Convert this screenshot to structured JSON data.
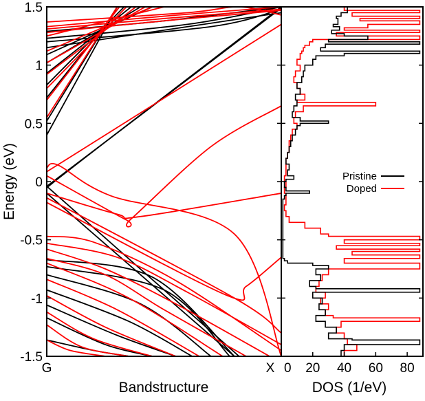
{
  "colors": {
    "pristine": "#000000",
    "doped": "#ff0000",
    "axes": "#000000",
    "background": "#ffffff"
  },
  "chart_data": [
    {
      "type": "line",
      "panel": "left",
      "title": "",
      "xlabel": "Bandstructure",
      "ylabel": "Energy (eV)",
      "x_tick_labels": [
        "G",
        "X"
      ],
      "ylim": [
        -1.5,
        1.5
      ],
      "y_ticks": [
        -1.5,
        -1,
        -0.5,
        0,
        0.5,
        1,
        1.5
      ],
      "y_tick_labels": [
        "-1.5",
        "-1",
        "-0.5",
        "0",
        "0.5",
        "1",
        "1.5"
      ],
      "grid": false,
      "series": [
        {
          "name": "Pristine",
          "color": "#000000",
          "bands": [
            {
              "k": [
                0.0,
                0.5,
                1.0
              ],
              "E": [
                1.29,
                1.38,
                1.5
              ]
            },
            {
              "k": [
                0.0,
                0.6,
                1.0
              ],
              "E": [
                1.23,
                1.35,
                1.5
              ]
            },
            {
              "k": [
                0.0,
                0.7,
                1.0
              ],
              "E": [
                1.2,
                1.33,
                1.48
              ]
            },
            {
              "k": [
                0.0,
                0.5,
                1.0
              ],
              "E": [
                1.15,
                1.3,
                1.45
              ]
            },
            {
              "k": [
                0.0,
                0.45
              ],
              "E": [
                1.09,
                1.5
              ]
            },
            {
              "k": [
                0.0,
                0.4
              ],
              "E": [
                1.02,
                1.5
              ]
            },
            {
              "k": [
                0.0,
                0.36
              ],
              "E": [
                0.93,
                1.5
              ]
            },
            {
              "k": [
                0.0,
                0.33
              ],
              "E": [
                0.83,
                1.5
              ]
            },
            {
              "k": [
                0.0,
                0.31
              ],
              "E": [
                0.72,
                1.5
              ]
            },
            {
              "k": [
                0.0,
                0.3
              ],
              "E": [
                0.52,
                1.5
              ]
            },
            {
              "k": [
                0.0,
                0.3
              ],
              "E": [
                0.4,
                1.5
              ]
            },
            {
              "k": [
                0.0,
                0.02,
                1.0
              ],
              "E": [
                -0.01,
                -0.01,
                1.49
              ]
            },
            {
              "k": [
                0.0,
                0.02,
                1.0
              ],
              "E": [
                -0.11,
                -0.02,
                1.5
              ]
            },
            {
              "k": [
                0.0,
                0.8
              ],
              "E": [
                -0.1,
                -1.5
              ]
            },
            {
              "k": [
                0.0,
                0.82
              ],
              "E": [
                -0.04,
                -1.5
              ]
            },
            {
              "k": [
                0.0,
                0.45,
                0.8
              ],
              "E": [
                -0.67,
                -0.82,
                -1.5
              ]
            },
            {
              "k": [
                0.0,
                0.5,
                0.78
              ],
              "E": [
                -0.73,
                -0.93,
                -1.5
              ]
            },
            {
              "k": [
                0.0,
                0.4,
                0.7
              ],
              "E": [
                -0.8,
                -1.05,
                -1.5
              ]
            },
            {
              "k": [
                0.0,
                0.35,
                0.62
              ],
              "E": [
                -0.93,
                -1.2,
                -1.5
              ]
            },
            {
              "k": [
                0.0,
                0.3,
                0.55
              ],
              "E": [
                -1.06,
                -1.32,
                -1.5
              ]
            },
            {
              "k": [
                0.0,
                0.25,
                0.45
              ],
              "E": [
                -1.17,
                -1.4,
                -1.5
              ]
            },
            {
              "k": [
                0.0,
                0.2,
                0.35
              ],
              "E": [
                -1.36,
                -1.45,
                -1.5
              ]
            }
          ]
        },
        {
          "name": "Doped",
          "color": "#ff0000",
          "bands": [
            {
              "k": [
                0.0,
                0.6,
                0.82,
                1.0
              ],
              "E": [
                1.37,
                1.45,
                1.5,
                1.43
              ]
            },
            {
              "k": [
                0.0,
                0.5,
                1.0
              ],
              "E": [
                1.33,
                1.42,
                1.5
              ]
            },
            {
              "k": [
                0.0,
                0.5,
                1.0
              ],
              "E": [
                1.31,
                1.4,
                1.48
              ]
            },
            {
              "k": [
                0.0,
                0.5,
                1.0
              ],
              "E": [
                1.28,
                1.38,
                1.47
              ]
            },
            {
              "k": [
                0.0,
                0.5
              ],
              "E": [
                1.25,
                1.5
              ]
            },
            {
              "k": [
                0.0,
                0.45
              ],
              "E": [
                1.12,
                1.5
              ]
            },
            {
              "k": [
                0.0,
                0.42
              ],
              "E": [
                1.02,
                1.5
              ]
            },
            {
              "k": [
                0.0,
                0.38
              ],
              "E": [
                0.92,
                1.5
              ]
            },
            {
              "k": [
                0.0,
                0.34
              ],
              "E": [
                0.8,
                1.5
              ]
            },
            {
              "k": [
                0.0,
                0.31
              ],
              "E": [
                0.7,
                1.5
              ]
            },
            {
              "k": [
                0.0,
                0.3
              ],
              "E": [
                0.55,
                1.5
              ]
            },
            {
              "k": [
                0.0,
                0.06,
                1.0
              ],
              "E": [
                0.09,
                0.16,
                1.35
              ]
            },
            {
              "k": [
                0.0,
                0.05,
                0.27,
                0.8,
                1.0
              ],
              "E": [
                0.12,
                0.14,
                -0.12,
                -0.45,
                -1.5
              ]
            },
            {
              "k": [
                0.0,
                0.34,
                0.36,
                0.7,
                1.0
              ],
              "E": [
                0.05,
                -0.33,
                -0.32,
                0.3,
                0.65
              ]
            },
            {
              "k": [
                0.0,
                0.3,
                0.4,
                1.0
              ],
              "E": [
                -0.1,
                -0.28,
                -0.3,
                -0.1
              ]
            },
            {
              "k": [
                0.0,
                0.76,
                0.85,
                1.0
              ],
              "E": [
                -0.18,
                -0.97,
                -0.9,
                -0.65
              ]
            },
            {
              "k": [
                0.0,
                0.8,
                1.0
              ],
              "E": [
                -0.14,
                -1.0,
                -1.3
              ]
            },
            {
              "k": [
                0.0,
                0.2,
                0.55,
                1.0
              ],
              "E": [
                -0.47,
                -0.52,
                -0.85,
                -1.45
              ]
            },
            {
              "k": [
                0.0,
                0.3,
                0.6,
                1.0
              ],
              "E": [
                -0.53,
                -0.65,
                -0.95,
                -1.4
              ]
            },
            {
              "k": [
                0.0,
                0.25,
                0.55,
                0.95
              ],
              "E": [
                -0.58,
                -0.75,
                -1.05,
                -1.5
              ]
            },
            {
              "k": [
                0.0,
                0.25,
                0.5,
                0.85
              ],
              "E": [
                -0.66,
                -0.8,
                -1.1,
                -1.5
              ]
            },
            {
              "k": [
                0.0,
                0.35,
                0.75
              ],
              "E": [
                -0.7,
                -1.0,
                -1.5
              ]
            },
            {
              "k": [
                0.0,
                0.3,
                0.65
              ],
              "E": [
                -0.84,
                -1.1,
                -1.5
              ]
            },
            {
              "k": [
                0.0,
                0.25,
                0.55
              ],
              "E": [
                -0.98,
                -1.25,
                -1.5
              ]
            },
            {
              "k": [
                0.0,
                0.2,
                0.45
              ],
              "E": [
                -1.12,
                -1.35,
                -1.5
              ]
            },
            {
              "k": [
                0.0,
                0.15,
                0.35
              ],
              "E": [
                -1.23,
                -1.42,
                -1.5
              ]
            },
            {
              "k": [
                0.0,
                0.1,
                0.25
              ],
              "E": [
                -1.36,
                -1.45,
                -1.5
              ]
            }
          ]
        }
      ]
    },
    {
      "type": "line",
      "panel": "right",
      "title": "",
      "xlabel": "DOS (1/eV)",
      "ylabel": "",
      "x_ticks": [
        0,
        20,
        40,
        60,
        80
      ],
      "x_tick_labels": [
        "0",
        "20",
        "40",
        "60",
        "80"
      ],
      "xlim": [
        0,
        90
      ],
      "ylim": [
        -1.5,
        1.5
      ],
      "grid": false,
      "legend": {
        "position": "center-right",
        "entries": [
          {
            "label": "Pristine",
            "color": "#000000"
          },
          {
            "label": "Doped",
            "color": "#ff0000"
          }
        ]
      },
      "series": [
        {
          "name": "Pristine",
          "color": "#000000",
          "E": [
            1.5,
            1.45,
            1.42,
            1.4,
            1.35,
            1.33,
            1.3,
            1.27,
            1.25,
            1.22,
            1.2,
            1.18,
            1.15,
            1.12,
            1.1,
            1.08,
            1.05,
            1.0,
            0.95,
            0.9,
            0.85,
            0.8,
            0.75,
            0.7,
            0.65,
            0.6,
            0.55,
            0.52,
            0.5,
            0.48,
            0.45,
            0.4,
            0.35,
            0.3,
            0.25,
            0.2,
            0.15,
            0.1,
            0.05,
            0.02,
            0.0,
            -0.05,
            -0.08,
            -0.1,
            -0.12,
            -0.15,
            -0.2,
            -0.3,
            -0.4,
            -0.5,
            -0.6,
            -0.66,
            -0.68,
            -0.7,
            -0.72,
            -0.75,
            -0.8,
            -0.85,
            -0.9,
            -0.92,
            -0.95,
            -1.0,
            -1.05,
            -1.1,
            -1.15,
            -1.2,
            -1.25,
            -1.3,
            -1.35,
            -1.36,
            -1.4,
            -1.45,
            -1.5
          ],
          "DOS": [
            42,
            38,
            35,
            36,
            33,
            37,
            32,
            40,
            55,
            30,
            88,
            28,
            25,
            88,
            40,
            22,
            20,
            15,
            14,
            13,
            10,
            12,
            9,
            10,
            8,
            7,
            12,
            30,
            12,
            10,
            9,
            7,
            6,
            5,
            4,
            3,
            5,
            4,
            8,
            3,
            2,
            3,
            18,
            3,
            2,
            1,
            1,
            1,
            1,
            1,
            1,
            2,
            4,
            20,
            30,
            22,
            25,
            18,
            22,
            88,
            20,
            26,
            24,
            28,
            22,
            28,
            35,
            30,
            45,
            88,
            40,
            38,
            44
          ]
        },
        {
          "name": "Doped",
          "color": "#ff0000",
          "E": [
            1.5,
            1.47,
            1.45,
            1.42,
            1.4,
            1.38,
            1.35,
            1.32,
            1.3,
            1.28,
            1.25,
            1.22,
            1.2,
            1.17,
            1.15,
            1.12,
            1.1,
            1.05,
            1.0,
            0.95,
            0.9,
            0.85,
            0.8,
            0.75,
            0.7,
            0.68,
            0.65,
            0.6,
            0.55,
            0.5,
            0.45,
            0.4,
            0.35,
            0.3,
            0.25,
            0.2,
            0.15,
            0.1,
            0.05,
            0.0,
            -0.05,
            -0.1,
            -0.15,
            -0.2,
            -0.25,
            -0.3,
            -0.35,
            -0.4,
            -0.45,
            -0.47,
            -0.5,
            -0.53,
            -0.55,
            -0.58,
            -0.6,
            -0.63,
            -0.66,
            -0.7,
            -0.75,
            -0.8,
            -0.85,
            -0.9,
            -0.95,
            -1.0,
            -1.05,
            -1.1,
            -1.15,
            -1.17,
            -1.2,
            -1.25,
            -1.3,
            -1.35,
            -1.4,
            -1.45,
            -1.5
          ],
          "DOS": [
            40,
            88,
            45,
            88,
            50,
            88,
            55,
            40,
            88,
            35,
            88,
            20,
            18,
            15,
            14,
            13,
            12,
            10,
            12,
            9,
            8,
            10,
            12,
            15,
            10,
            60,
            14,
            9,
            8,
            10,
            7,
            6,
            5,
            5,
            4,
            3,
            3,
            3,
            2,
            3,
            2,
            3,
            3,
            2,
            3,
            5,
            15,
            25,
            30,
            88,
            40,
            88,
            35,
            88,
            45,
            88,
            40,
            88,
            30,
            26,
            24,
            22,
            28,
            25,
            30,
            28,
            33,
            88,
            38,
            35,
            40,
            42,
            48,
            40,
            45
          ]
        }
      ]
    }
  ]
}
